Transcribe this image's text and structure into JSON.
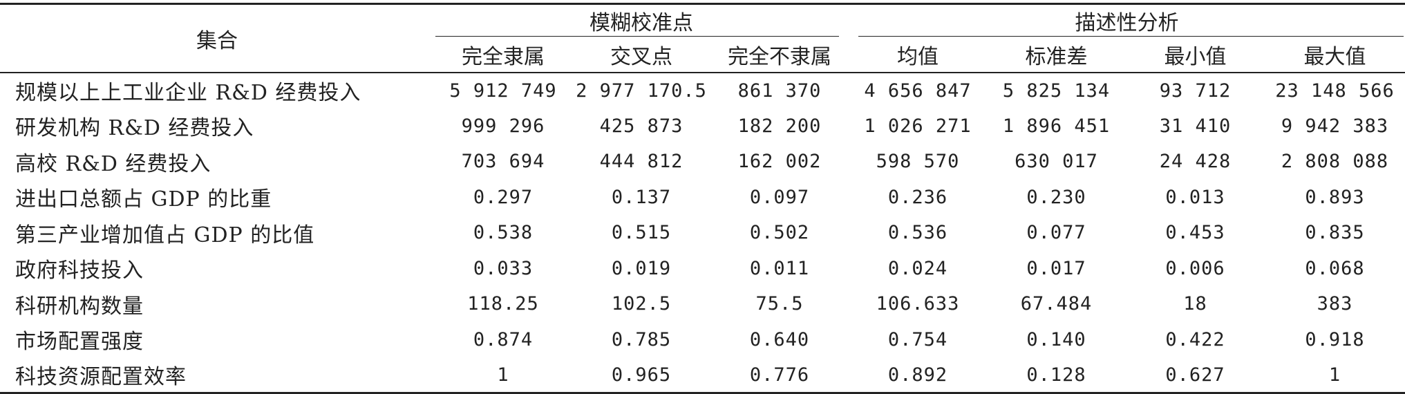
{
  "table": {
    "set_header": "集合",
    "groups": [
      "模糊校准点",
      "描述性分析"
    ],
    "subheaders": [
      "完全隶属",
      "交叉点",
      "完全不隶属",
      "均值",
      "标准差",
      "最小值",
      "最大值"
    ],
    "rows": [
      {
        "label": "规模以上上工业企业 R&D 经费投入",
        "values": [
          "5 912 749",
          "2 977 170.5",
          "861 370",
          "4 656 847",
          "5 825 134",
          "93 712",
          "23 148 566"
        ]
      },
      {
        "label": "研发机构 R&D 经费投入",
        "values": [
          "999 296",
          "425 873",
          "182 200",
          "1 026 271",
          "1 896 451",
          "31 410",
          "9 942 383"
        ]
      },
      {
        "label": "高校 R&D 经费投入",
        "values": [
          "703 694",
          "444 812",
          "162 002",
          "598 570",
          "630 017",
          "24 428",
          "2 808 088"
        ]
      },
      {
        "label": "进出口总额占 GDP 的比重",
        "values": [
          "0.297",
          "0.137",
          "0.097",
          "0.236",
          "0.230",
          "0.013",
          "0.893"
        ]
      },
      {
        "label": "第三产业增加值占 GDP 的比值",
        "values": [
          "0.538",
          "0.515",
          "0.502",
          "0.536",
          "0.077",
          "0.453",
          "0.835"
        ]
      },
      {
        "label": "政府科技投入",
        "values": [
          "0.033",
          "0.019",
          "0.011",
          "0.024",
          "0.017",
          "0.006",
          "0.068"
        ]
      },
      {
        "label": "科研机构数量",
        "values": [
          "118.25",
          "102.5",
          "75.5",
          "106.633",
          "67.484",
          "18",
          "383"
        ]
      },
      {
        "label": "市场配置强度",
        "values": [
          "0.874",
          "0.785",
          "0.640",
          "0.754",
          "0.140",
          "0.422",
          "0.918"
        ]
      },
      {
        "label": "科技资源配置效率",
        "values": [
          "1",
          "0.965",
          "0.776",
          "0.892",
          "0.128",
          "0.627",
          "1"
        ]
      }
    ]
  }
}
